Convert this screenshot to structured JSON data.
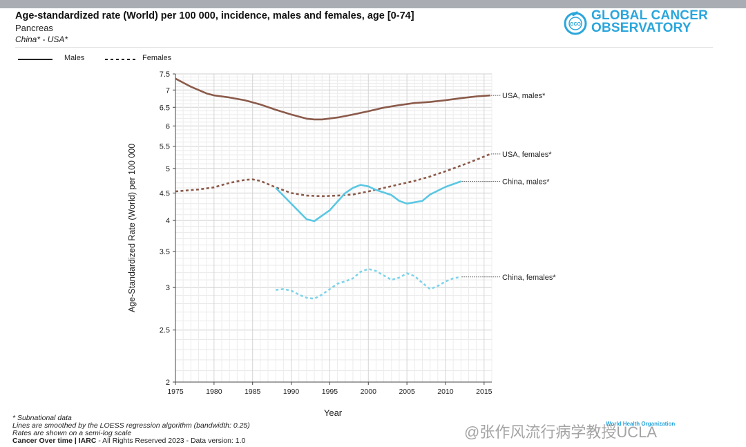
{
  "header": {
    "title": "Age-standardized rate (World) per 100 000, incidence, males and females, age [0-74]",
    "subtitle": "Pancreas",
    "populations": "China* - USA*"
  },
  "logo": {
    "line1": "GLOBAL CANCER",
    "line2": "OBSERVATORY",
    "badge": "GCO",
    "color": "#2aa6dc"
  },
  "legend": {
    "males": "Males",
    "females": "Females"
  },
  "chart_data": {
    "type": "line",
    "title": "Age-standardized rate (World) per 100 000, incidence, males and females, age [0-74]",
    "xlabel": "Year",
    "ylabel": "Age-Standardized Rate (World) per 100 000",
    "yscale": "log",
    "xlim": [
      1975,
      2016
    ],
    "ylim": [
      2,
      7.5
    ],
    "xticks": [
      1975,
      1980,
      1985,
      1990,
      1995,
      2000,
      2005,
      2010,
      2015
    ],
    "yticks": [
      2,
      2.5,
      3,
      3.5,
      4,
      4.5,
      5,
      5.5,
      6,
      6.5,
      7,
      7.5
    ],
    "series": [
      {
        "name": "USA, males*",
        "color": "#8b5a4a",
        "style": "solid",
        "x": [
          1975,
          1977,
          1979,
          1980,
          1982,
          1984,
          1986,
          1988,
          1990,
          1992,
          1993,
          1994,
          1996,
          1998,
          2000,
          2002,
          2004,
          2006,
          2008,
          2010,
          2012,
          2014,
          2015.8
        ],
        "y": [
          7.35,
          7.1,
          6.9,
          6.84,
          6.78,
          6.7,
          6.58,
          6.43,
          6.3,
          6.19,
          6.17,
          6.17,
          6.22,
          6.3,
          6.39,
          6.49,
          6.56,
          6.62,
          6.65,
          6.7,
          6.76,
          6.81,
          6.84
        ]
      },
      {
        "name": "USA, females*",
        "color": "#8b5a4a",
        "style": "dashed",
        "x": [
          1975,
          1978,
          1980,
          1982,
          1984,
          1985,
          1986,
          1988,
          1990,
          1992,
          1994,
          1996,
          1998,
          2000,
          2002,
          2004,
          2006,
          2008,
          2010,
          2012,
          2014,
          2015.8
        ],
        "y": [
          4.53,
          4.57,
          4.61,
          4.7,
          4.76,
          4.77,
          4.74,
          4.61,
          4.5,
          4.45,
          4.44,
          4.45,
          4.47,
          4.53,
          4.6,
          4.67,
          4.74,
          4.83,
          4.94,
          5.06,
          5.19,
          5.32
        ]
      },
      {
        "name": "China, males*",
        "color": "#5bc7e3",
        "style": "solid",
        "x": [
          1988,
          1990,
          1992,
          1993,
          1995,
          1997,
          1998,
          1999,
          2000,
          2001,
          2003,
          2004,
          2005,
          2007,
          2008,
          2010,
          2012
        ],
        "y": [
          4.6,
          4.3,
          4.02,
          3.99,
          4.18,
          4.5,
          4.6,
          4.66,
          4.63,
          4.56,
          4.46,
          4.35,
          4.3,
          4.35,
          4.47,
          4.62,
          4.73
        ]
      },
      {
        "name": "China, females*",
        "color": "#7fd3ea",
        "style": "dashed",
        "x": [
          1988,
          1989,
          1990,
          1991,
          1992,
          1993,
          1994,
          1995,
          1996,
          1997,
          1998,
          1999,
          2000,
          2001,
          2002,
          2003,
          2004,
          2005,
          2006,
          2007,
          2008,
          2009,
          2010,
          2011,
          2012
        ],
        "y": [
          2.97,
          2.98,
          2.96,
          2.91,
          2.87,
          2.86,
          2.91,
          2.98,
          3.05,
          3.08,
          3.12,
          3.21,
          3.25,
          3.22,
          3.16,
          3.1,
          3.13,
          3.19,
          3.15,
          3.06,
          2.98,
          3.02,
          3.08,
          3.12,
          3.14
        ]
      }
    ]
  },
  "footer": {
    "line1": "* Subnational data",
    "line2": "Lines are smoothed by the LOESS regression algorithm (bandwidth: 0.25)",
    "line3": "Rates are shown on a semi-log scale",
    "line4_bold": "Cancer Over time | IARC",
    "line4_rest": " - All Rights Reserved 2023 - Data version: 1.0"
  },
  "watermark": "@张作风流行病学教授UCLA",
  "who_text": "World Health Organization"
}
